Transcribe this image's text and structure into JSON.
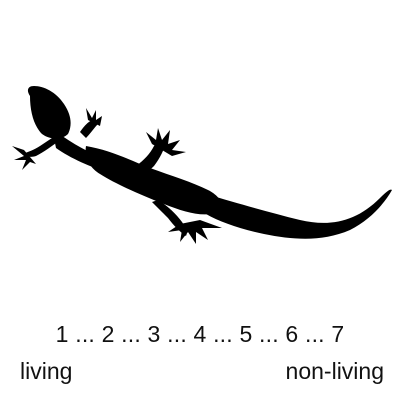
{
  "image": {
    "icon": "lizard-icon",
    "fill_color": "#000000",
    "background_color": "#ffffff"
  },
  "scale": {
    "points": [
      "1",
      "2",
      "3",
      "4",
      "5",
      "6",
      "7"
    ],
    "separator": " ... "
  },
  "anchors": {
    "left": "living",
    "right": "non-living"
  }
}
